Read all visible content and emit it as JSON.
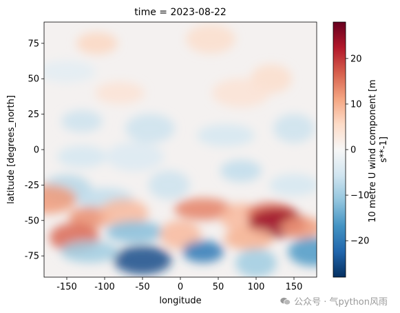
{
  "watermark": {
    "text": "公众号 · 气python风雨",
    "icon": "wechat-icon"
  },
  "chart_data": {
    "type": "heatmap",
    "title": "time = 2023-08-22",
    "xlabel": "longitude",
    "ylabel": "latitude [degrees_north]",
    "xlim": [
      -180,
      180
    ],
    "ylim": [
      -90,
      90
    ],
    "x_ticks": [
      -150,
      -100,
      -50,
      0,
      50,
      100,
      150
    ],
    "y_ticks": [
      -75,
      -50,
      -25,
      0,
      25,
      50,
      75
    ],
    "grid": false,
    "colorbar": {
      "label_lines": [
        "10 metre U wind component [m",
        "s**-1]"
      ],
      "vmin": -28,
      "vmax": 28,
      "ticks": [
        -20,
        -10,
        0,
        10,
        20
      ],
      "colormap": "RdBu_r",
      "colors": [
        "#053061",
        "#2166ac",
        "#4393c3",
        "#92c5de",
        "#d1e5f0",
        "#f7f7f7",
        "#fddbc7",
        "#f4a582",
        "#d6604d",
        "#b2182b",
        "#67001f"
      ]
    },
    "regions": [
      {
        "lon": -110,
        "lat": 75,
        "value": 6
      },
      {
        "lon": 40,
        "lat": 78,
        "value": 5
      },
      {
        "lon": -150,
        "lat": 55,
        "value": -3
      },
      {
        "lon": 120,
        "lat": 50,
        "value": 5
      },
      {
        "lon": -80,
        "lat": 40,
        "value": 4
      },
      {
        "lon": 80,
        "lat": 40,
        "value": 4
      },
      {
        "lon": -130,
        "lat": 20,
        "value": -6
      },
      {
        "lon": -40,
        "lat": 15,
        "value": -6
      },
      {
        "lon": 60,
        "lat": 10,
        "value": -5
      },
      {
        "lon": 150,
        "lat": 15,
        "value": -6
      },
      {
        "lon": -130,
        "lat": -5,
        "value": -5
      },
      {
        "lon": -60,
        "lat": -5,
        "value": -4
      },
      {
        "lon": 80,
        "lat": -15,
        "value": -7
      },
      {
        "lon": -150,
        "lat": -28,
        "value": -8
      },
      {
        "lon": -100,
        "lat": -35,
        "value": -7
      },
      {
        "lon": -15,
        "lat": -25,
        "value": -6
      },
      {
        "lon": 150,
        "lat": -25,
        "value": -5
      },
      {
        "lon": -175,
        "lat": -35,
        "value": 12
      },
      {
        "lon": -120,
        "lat": -48,
        "value": 13
      },
      {
        "lon": -75,
        "lat": -45,
        "value": 9
      },
      {
        "lon": 30,
        "lat": -42,
        "value": 14
      },
      {
        "lon": 80,
        "lat": -48,
        "value": 9
      },
      {
        "lon": 120,
        "lat": -45,
        "value": 16
      },
      {
        "lon": 128,
        "lat": -52,
        "value": 24
      },
      {
        "lon": 160,
        "lat": -55,
        "value": 12
      },
      {
        "lon": -140,
        "lat": -62,
        "value": 16
      },
      {
        "lon": -60,
        "lat": -58,
        "value": -12
      },
      {
        "lon": 0,
        "lat": -60,
        "value": 9
      },
      {
        "lon": 90,
        "lat": -63,
        "value": 10
      },
      {
        "lon": -50,
        "lat": -78,
        "value": -25
      },
      {
        "lon": 30,
        "lat": -72,
        "value": -20
      },
      {
        "lon": 175,
        "lat": -72,
        "value": -16
      },
      {
        "lon": -120,
        "lat": -72,
        "value": -10
      },
      {
        "lon": 100,
        "lat": -80,
        "value": -10
      }
    ]
  }
}
